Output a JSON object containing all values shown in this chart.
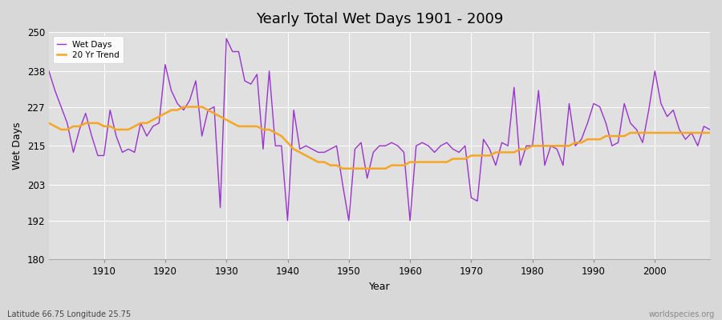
{
  "title": "Yearly Total Wet Days 1901 - 2009",
  "xlabel": "Year",
  "ylabel": "Wet Days",
  "subtitle_left": "Latitude 66.75 Longitude 25.75",
  "subtitle_right": "worldspecies.org",
  "wet_days_color": "#9933cc",
  "trend_color": "#f5a623",
  "bg_color": "#e0e0e0",
  "fig_color": "#d8d8d8",
  "ylim": [
    180,
    250
  ],
  "yticks": [
    180,
    192,
    203,
    215,
    227,
    238,
    250
  ],
  "xlim": [
    1901,
    2009
  ],
  "xticks": [
    1910,
    1920,
    1930,
    1940,
    1950,
    1960,
    1970,
    1980,
    1990,
    2000
  ],
  "years": [
    1901,
    1902,
    1903,
    1904,
    1905,
    1906,
    1907,
    1908,
    1909,
    1910,
    1911,
    1912,
    1913,
    1914,
    1915,
    1916,
    1917,
    1918,
    1919,
    1920,
    1921,
    1922,
    1923,
    1924,
    1925,
    1926,
    1927,
    1928,
    1929,
    1930,
    1931,
    1932,
    1933,
    1934,
    1935,
    1936,
    1937,
    1938,
    1939,
    1940,
    1941,
    1942,
    1943,
    1944,
    1945,
    1946,
    1947,
    1948,
    1949,
    1950,
    1951,
    1952,
    1953,
    1954,
    1955,
    1956,
    1957,
    1958,
    1959,
    1960,
    1961,
    1962,
    1963,
    1964,
    1965,
    1966,
    1967,
    1968,
    1969,
    1970,
    1971,
    1972,
    1973,
    1974,
    1975,
    1976,
    1977,
    1978,
    1979,
    1980,
    1981,
    1982,
    1983,
    1984,
    1985,
    1986,
    1987,
    1988,
    1989,
    1990,
    1991,
    1992,
    1993,
    1994,
    1995,
    1996,
    1997,
    1998,
    1999,
    2000,
    2001,
    2002,
    2003,
    2004,
    2005,
    2006,
    2007,
    2008,
    2009
  ],
  "wet_days": [
    238,
    232,
    227,
    222,
    213,
    220,
    225,
    218,
    212,
    212,
    226,
    218,
    213,
    214,
    213,
    222,
    218,
    221,
    222,
    240,
    232,
    228,
    226,
    229,
    235,
    218,
    226,
    227,
    196,
    248,
    244,
    244,
    235,
    234,
    237,
    214,
    238,
    215,
    215,
    192,
    226,
    214,
    215,
    214,
    213,
    213,
    214,
    215,
    203,
    192,
    214,
    216,
    205,
    213,
    215,
    215,
    216,
    215,
    213,
    192,
    215,
    216,
    215,
    213,
    215,
    216,
    214,
    213,
    215,
    199,
    198,
    217,
    214,
    209,
    216,
    215,
    233,
    209,
    215,
    215,
    232,
    209,
    215,
    214,
    209,
    228,
    215,
    217,
    222,
    228,
    227,
    222,
    215,
    216,
    228,
    222,
    220,
    216,
    226,
    238,
    228,
    224,
    226,
    220,
    217,
    219,
    215,
    221,
    220
  ],
  "trend": [
    222,
    221,
    220,
    220,
    221,
    221,
    222,
    222,
    222,
    221,
    221,
    220,
    220,
    220,
    221,
    222,
    222,
    223,
    224,
    225,
    226,
    226,
    227,
    227,
    227,
    227,
    226,
    225,
    224,
    223,
    222,
    221,
    221,
    221,
    221,
    220,
    220,
    219,
    218,
    216,
    214,
    213,
    212,
    211,
    210,
    210,
    209,
    209,
    208,
    208,
    208,
    208,
    208,
    208,
    208,
    208,
    209,
    209,
    209,
    210,
    210,
    210,
    210,
    210,
    210,
    210,
    211,
    211,
    211,
    212,
    212,
    212,
    212,
    213,
    213,
    213,
    213,
    214,
    214,
    215,
    215,
    215,
    215,
    215,
    215,
    215,
    216,
    216,
    217,
    217,
    217,
    218,
    218,
    218,
    218,
    219,
    219,
    219,
    219,
    219,
    219,
    219,
    219,
    219,
    219,
    219,
    219,
    219,
    219
  ]
}
